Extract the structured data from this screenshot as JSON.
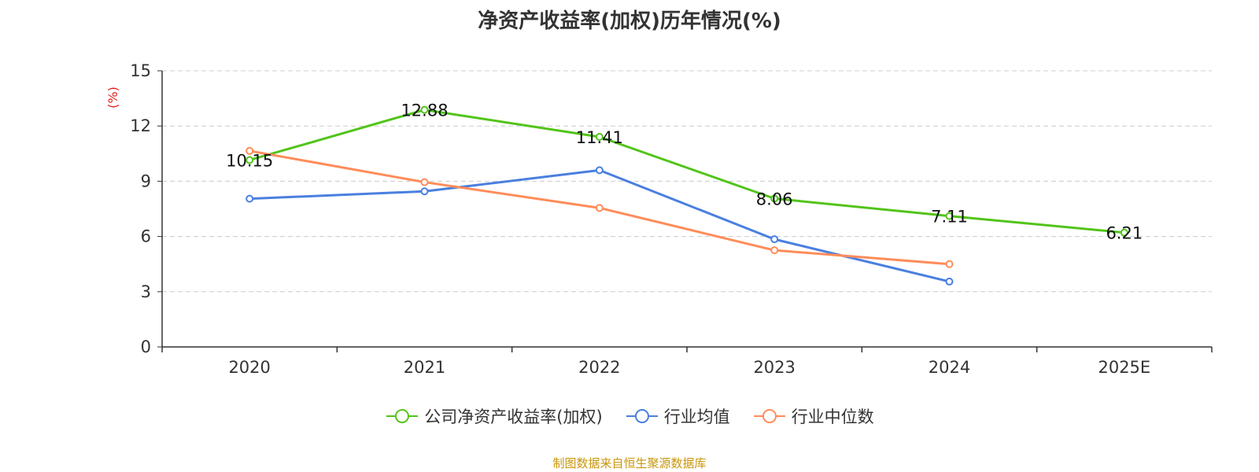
{
  "title": "净资产收益率(加权)历年情况(%)",
  "source_note": "制图数据来自恒生聚源数据库",
  "chart_data": {
    "type": "line",
    "title": "净资产收益率(加权)历年情况(%)",
    "xlabel": "",
    "ylabel": "(%)",
    "ylim": [
      0,
      15
    ],
    "yticks": [
      0,
      3,
      6,
      9,
      12,
      15
    ],
    "grid": true,
    "legend_position": "bottom",
    "categories": [
      "2020",
      "2021",
      "2022",
      "2023",
      "2024",
      "2025E"
    ],
    "series": [
      {
        "name": "公司净资产收益率(加权)",
        "color": "#52c41a",
        "values": [
          10.15,
          12.88,
          11.41,
          8.06,
          7.11,
          6.21
        ],
        "labels": [
          "10.15",
          "12.88",
          "11.41",
          "8.06",
          "7.11",
          "6.21"
        ]
      },
      {
        "name": "行业均值",
        "color": "#4a7fe0",
        "values": [
          8.05,
          8.45,
          9.6,
          5.85,
          3.55,
          null
        ]
      },
      {
        "name": "行业中位数",
        "color": "#ff8c5a",
        "values": [
          10.65,
          8.95,
          7.55,
          5.25,
          4.5,
          null
        ]
      }
    ]
  }
}
